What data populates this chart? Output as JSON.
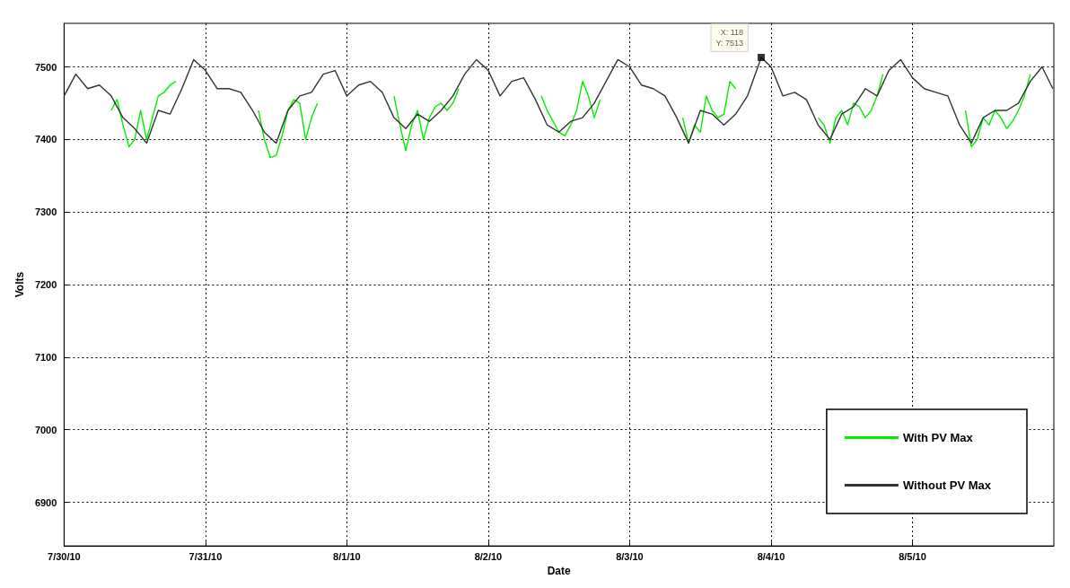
{
  "chart_data": {
    "type": "line",
    "xlabel": "Date",
    "ylabel": "Volts",
    "xlim": [
      "--07-30",
      "--08-06"
    ],
    "xticks": [
      {
        "value": "--07-30",
        "label": "7/30/10"
      },
      {
        "value": "--07-31",
        "label": "7/31/10"
      },
      {
        "value": "--08-01",
        "label": "8/1/10"
      },
      {
        "value": "--08-02",
        "label": "8/2/10"
      },
      {
        "value": "--08-03",
        "label": "8/3/10"
      },
      {
        "value": "--08-04",
        "label": "8/4/10"
      },
      {
        "value": "--08-05",
        "label": "8/5/10"
      }
    ],
    "ylim": [
      6840,
      7560
    ],
    "yticks": [
      6900,
      7000,
      7100,
      7200,
      7300,
      7400,
      7500
    ],
    "grid": true,
    "legend": "bottom right",
    "line_style": "solid",
    "annotations": [
      {
        "text": "X: 118\nY: 7513",
        "x": "--08-03T22:20",
        "y": 7513
      }
    ],
    "series": [
      {
        "name": "With PV Max",
        "color": "#00ee00",
        "x": [
          "--07-30T08:00",
          "--07-30T09:00",
          "--07-30T10:00",
          "--07-30T11:00",
          "--07-30T12:00",
          "--07-30T13:00",
          "--07-30T14:00",
          "--07-30T15:00",
          "--07-30T16:00",
          "--07-30T17:00",
          "--07-30T18:00",
          "--07-30T19:00",
          "--07-30T22:00",
          "--07-31T09:00",
          "--07-31T10:00",
          "--07-31T11:00",
          "--07-31T12:00",
          "--07-31T13:00",
          "--07-31T14:00",
          "--07-31T15:00",
          "--07-31T16:00",
          "--07-31T17:00",
          "--07-31T18:00",
          "--07-31T19:00",
          "--07-31T22:00",
          "--08-01T08:00",
          "--08-01T09:00",
          "--08-01T10:00",
          "--08-01T11:00",
          "--08-01T12:00",
          "--08-01T13:00",
          "--08-01T14:00",
          "--08-01T15:00",
          "--08-01T16:00",
          "--08-01T17:00",
          "--08-01T18:00",
          "--08-01T19:00",
          "--08-01T22:00",
          "--08-02T09:00",
          "--08-02T10:00",
          "--08-02T11:00",
          "--08-02T12:00",
          "--08-02T13:00",
          "--08-02T14:00",
          "--08-02T15:00",
          "--08-02T16:00",
          "--08-02T17:00",
          "--08-02T18:00",
          "--08-02T19:00",
          "--08-02T22:00",
          "--08-03T09:00",
          "--08-03T10:00",
          "--08-03T11:00",
          "--08-03T12:00",
          "--08-03T13:00",
          "--08-03T14:00",
          "--08-03T15:00",
          "--08-03T16:00",
          "--08-03T17:00",
          "--08-03T18:00",
          "--08-03T22:00",
          "--08-04T08:00",
          "--08-04T09:00",
          "--08-04T10:00",
          "--08-04T11:00",
          "--08-04T12:00",
          "--08-04T13:00",
          "--08-04T14:00",
          "--08-04T15:00",
          "--08-04T16:00",
          "--08-04T17:00",
          "--08-04T18:00",
          "--08-04T19:00",
          "--08-04T22:00",
          "--08-05T09:00",
          "--08-05T10:00",
          "--08-05T11:00",
          "--08-05T12:00",
          "--08-05T13:00",
          "--08-05T14:00",
          "--08-05T15:00",
          "--08-05T16:00",
          "--08-05T17:00",
          "--08-05T18:00",
          "--08-05T19:00",
          "--08-05T20:00"
        ],
        "values": [
          7440,
          7455,
          7420,
          7390,
          7400,
          7440,
          7400,
          7430,
          7460,
          7465,
          7475,
          7480,
          null,
          7440,
          7400,
          7375,
          7378,
          7405,
          7440,
          7455,
          7450,
          7400,
          7430,
          7450,
          null,
          7460,
          7420,
          7385,
          7420,
          7440,
          7400,
          7430,
          7445,
          7450,
          7440,
          7450,
          7470,
          null,
          7460,
          7440,
          7425,
          7410,
          7405,
          7420,
          7440,
          7480,
          7460,
          7430,
          7455,
          null,
          7430,
          7395,
          7420,
          7410,
          7460,
          7440,
          7430,
          7435,
          7480,
          7470,
          null,
          7430,
          7420,
          7395,
          7430,
          7440,
          7420,
          7450,
          7445,
          7430,
          7440,
          7460,
          7490,
          null,
          7440,
          7390,
          7400,
          7430,
          7420,
          7440,
          7430,
          7415,
          7425,
          7440,
          7460,
          7490
        ]
      },
      {
        "name": "Without PV Max",
        "color": "#333333",
        "x": [
          "--07-30T00:00",
          "--07-30T02:00",
          "--07-30T04:00",
          "--07-30T06:00",
          "--07-30T08:00",
          "--07-30T10:00",
          "--07-30T12:00",
          "--07-30T14:00",
          "--07-30T16:00",
          "--07-30T18:00",
          "--07-30T20:00",
          "--07-30T22:00",
          "--07-31T00:00",
          "--07-31T02:00",
          "--07-31T04:00",
          "--07-31T06:00",
          "--07-31T08:00",
          "--07-31T10:00",
          "--07-31T12:00",
          "--07-31T14:00",
          "--07-31T16:00",
          "--07-31T18:00",
          "--07-31T20:00",
          "--07-31T22:00",
          "--08-01T00:00",
          "--08-01T02:00",
          "--08-01T04:00",
          "--08-01T06:00",
          "--08-01T08:00",
          "--08-01T10:00",
          "--08-01T12:00",
          "--08-01T14:00",
          "--08-01T16:00",
          "--08-01T18:00",
          "--08-01T20:00",
          "--08-01T22:00",
          "--08-02T00:00",
          "--08-02T02:00",
          "--08-02T04:00",
          "--08-02T06:00",
          "--08-02T08:00",
          "--08-02T10:00",
          "--08-02T12:00",
          "--08-02T14:00",
          "--08-02T16:00",
          "--08-02T18:00",
          "--08-02T20:00",
          "--08-02T22:00",
          "--08-03T00:00",
          "--08-03T02:00",
          "--08-03T04:00",
          "--08-03T06:00",
          "--08-03T08:00",
          "--08-03T10:00",
          "--08-03T12:00",
          "--08-03T14:00",
          "--08-03T16:00",
          "--08-03T18:00",
          "--08-03T20:00",
          "--08-03T22:20",
          "--08-04T00:00",
          "--08-04T02:00",
          "--08-04T04:00",
          "--08-04T06:00",
          "--08-04T08:00",
          "--08-04T10:00",
          "--08-04T12:00",
          "--08-04T14:00",
          "--08-04T16:00",
          "--08-04T18:00",
          "--08-04T20:00",
          "--08-04T22:00",
          "--08-05T00:00",
          "--08-05T02:00",
          "--08-05T04:00",
          "--08-05T06:00",
          "--08-05T08:00",
          "--08-05T10:00",
          "--08-05T12:00",
          "--08-05T14:00",
          "--08-05T16:00",
          "--08-05T18:00",
          "--08-05T20:00",
          "--08-05T22:00",
          "--08-05T23:50"
        ],
        "values": [
          7460,
          7490,
          7470,
          7475,
          7460,
          7430,
          7415,
          7395,
          7440,
          7435,
          7470,
          7510,
          7495,
          7470,
          7470,
          7465,
          7440,
          7410,
          7395,
          7440,
          7460,
          7465,
          7490,
          7495,
          7460,
          7475,
          7480,
          7465,
          7430,
          7415,
          7435,
          7425,
          7440,
          7460,
          7490,
          7510,
          7495,
          7460,
          7480,
          7485,
          7455,
          7420,
          7410,
          7425,
          7430,
          7450,
          7480,
          7510,
          7500,
          7475,
          7470,
          7460,
          7430,
          7395,
          7440,
          7435,
          7420,
          7435,
          7460,
          7513,
          7500,
          7460,
          7465,
          7455,
          7420,
          7400,
          7435,
          7445,
          7470,
          7460,
          7495,
          7510,
          7485,
          7470,
          7465,
          7460,
          7420,
          7395,
          7430,
          7440,
          7440,
          7450,
          7480,
          7500,
          7470
        ]
      }
    ]
  }
}
